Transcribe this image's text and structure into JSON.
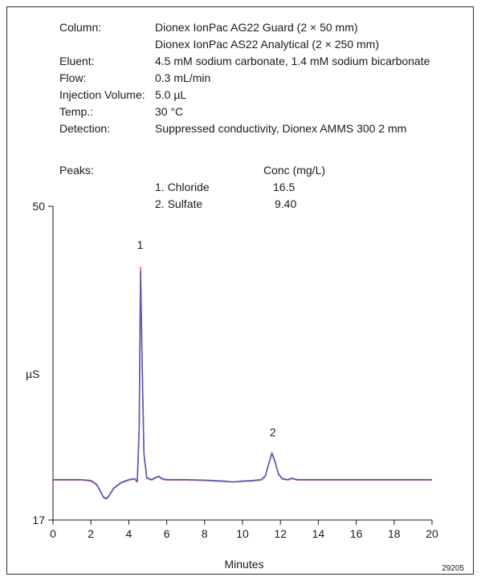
{
  "conditions": {
    "column_label": "Column:",
    "column_value_1": "Dionex IonPac AG22 Guard (2 × 50 mm)",
    "column_value_2": "Dionex IonPac AS22 Analytical (2 × 250 mm)",
    "eluent_label": "Eluent:",
    "eluent_value": "4.5 mM sodium carbonate, 1.4 mM sodium bicarbonate",
    "flow_label": "Flow:",
    "flow_value": "0.3 mL/min",
    "injection_label": "Injection Volume:",
    "injection_value": "5.0 µL",
    "temp_label": "Temp.:",
    "temp_value": "30 °C",
    "detection_label": "Detection:",
    "detection_value": "Suppressed conductivity,  Dionex AMMS 300 2 mm"
  },
  "peaks": {
    "label": "Peaks:",
    "conc_header": "Conc (mg/L)",
    "items": [
      {
        "name": "1. Chloride",
        "conc": "16.5"
      },
      {
        "name": "2. Sulfate",
        "conc": "9.40"
      }
    ]
  },
  "figure_id": "29205",
  "colors": {
    "trace_red": "#e06a6a",
    "trace_blue": "#5a5ab8",
    "axis": "#1a1a1a"
  },
  "chart_data": {
    "type": "line",
    "xlabel": "Minutes",
    "ylabel": "µS",
    "xlim": [
      0,
      20
    ],
    "ylim": [
      17,
      50
    ],
    "x_ticks": [
      0,
      2,
      4,
      6,
      8,
      10,
      12,
      14,
      16,
      18,
      20
    ],
    "y_tick_labels": [
      "17",
      "50"
    ],
    "grid": false,
    "peak_labels": [
      {
        "text": "1",
        "x": 4.6,
        "y": 45.0
      },
      {
        "text": "2",
        "x": 11.6,
        "y": 25.3
      }
    ],
    "series": [
      {
        "color": "#e06a6a",
        "x": [
          0,
          1.5,
          2.0,
          2.3,
          2.5,
          2.65,
          2.8,
          2.95,
          3.2,
          3.6,
          4.0,
          4.3,
          4.45,
          4.55,
          4.62,
          4.7,
          4.8,
          4.95,
          5.2,
          5.5,
          5.6,
          5.75,
          6.0,
          7.0,
          8.0,
          9.0,
          9.5,
          10.0,
          10.5,
          11.0,
          11.2,
          11.4,
          11.55,
          11.7,
          11.9,
          12.1,
          12.4,
          12.6,
          12.9,
          14.0,
          16.0,
          18.0,
          20.0
        ],
        "y": [
          21.2,
          21.2,
          21.1,
          20.7,
          20.0,
          19.4,
          19.2,
          19.5,
          20.3,
          20.9,
          21.2,
          21.3,
          21.0,
          27.0,
          43.6,
          34.0,
          24.0,
          21.4,
          21.2,
          21.5,
          21.55,
          21.3,
          21.2,
          21.2,
          21.15,
          21.05,
          21.0,
          21.05,
          21.1,
          21.2,
          21.6,
          23.0,
          24.1,
          23.3,
          21.8,
          21.3,
          21.2,
          21.35,
          21.2,
          21.2,
          21.2,
          21.2,
          21.2
        ]
      },
      {
        "color": "#5a5ab8",
        "x": [
          0,
          1.5,
          2.0,
          2.3,
          2.5,
          2.65,
          2.8,
          2.95,
          3.2,
          3.6,
          4.0,
          4.3,
          4.45,
          4.55,
          4.62,
          4.7,
          4.8,
          4.95,
          5.2,
          5.5,
          5.6,
          5.75,
          6.0,
          7.0,
          8.0,
          9.0,
          9.5,
          10.0,
          10.5,
          11.0,
          11.2,
          11.4,
          11.55,
          11.7,
          11.9,
          12.1,
          12.4,
          12.6,
          12.9,
          14.0,
          16.0,
          18.0,
          20.0
        ],
        "y": [
          21.25,
          21.25,
          21.15,
          20.75,
          20.05,
          19.45,
          19.25,
          19.55,
          20.35,
          20.95,
          21.25,
          21.35,
          21.05,
          26.8,
          43.2,
          33.8,
          23.9,
          21.45,
          21.25,
          21.55,
          21.6,
          21.35,
          21.25,
          21.25,
          21.2,
          21.1,
          21.0,
          21.1,
          21.15,
          21.25,
          21.65,
          23.0,
          24.0,
          23.2,
          21.85,
          21.35,
          21.25,
          21.4,
          21.25,
          21.25,
          21.25,
          21.25,
          21.25
        ]
      }
    ]
  }
}
